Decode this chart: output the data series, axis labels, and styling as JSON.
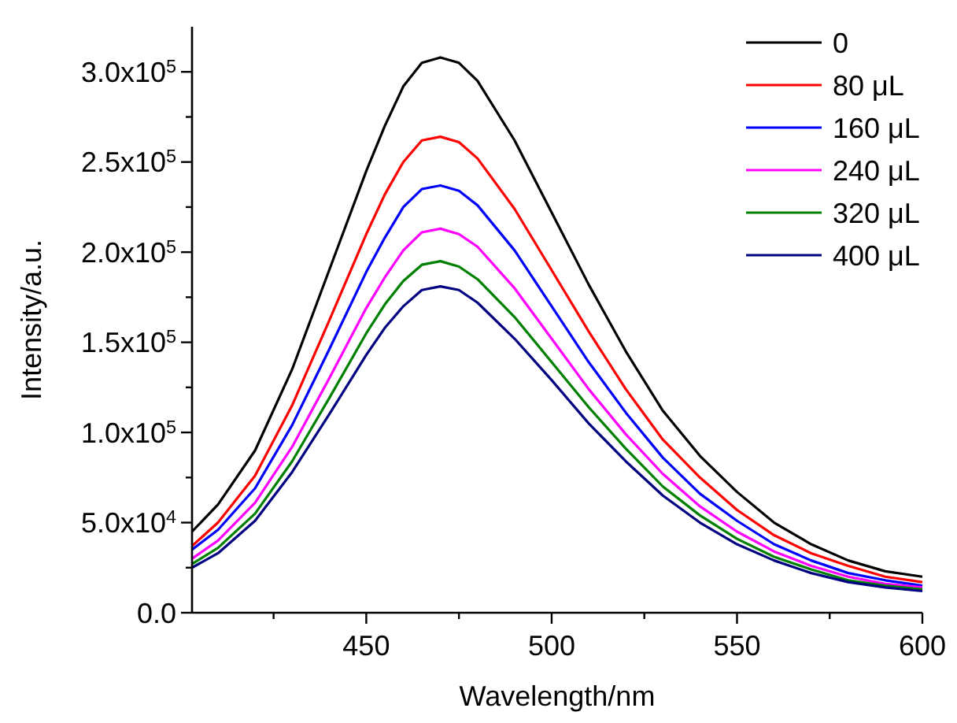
{
  "chart_data": {
    "type": "line",
    "xlabel": "Wavelength/nm",
    "ylabel": "Intensity/a.u.",
    "xlim": [
      403,
      600
    ],
    "ylim": [
      0,
      325000
    ],
    "xticks": [
      {
        "value": 425,
        "label": null
      },
      450,
      {
        "value": 475,
        "label": null
      },
      500,
      {
        "value": 525,
        "label": null
      },
      550,
      {
        "value": 575,
        "label": null
      },
      600
    ],
    "yticks": [
      {
        "value": 0,
        "label": "0.0"
      },
      {
        "value": 25000,
        "label": null
      },
      {
        "value": 50000,
        "label": "5.0x10$^{4}$"
      },
      {
        "value": 75000,
        "label": null
      },
      {
        "value": 100000,
        "label": "1.0x10$^{5}$"
      },
      {
        "value": 125000,
        "label": null
      },
      {
        "value": 150000,
        "label": "1.5x10$^{5}$"
      },
      {
        "value": 175000,
        "label": null
      },
      {
        "value": 200000,
        "label": "2.0x10$^{5}$"
      },
      {
        "value": 225000,
        "label": null
      },
      {
        "value": 250000,
        "label": "2.5x10$^{5}$"
      },
      {
        "value": 275000,
        "label": null
      },
      {
        "value": 300000,
        "label": "3.0x10$^{5}$"
      }
    ],
    "x": [
      403,
      410,
      420,
      430,
      440,
      450,
      455,
      460,
      465,
      470,
      475,
      480,
      490,
      500,
      510,
      520,
      530,
      540,
      550,
      560,
      570,
      580,
      590,
      600
    ],
    "grid": false,
    "legend": "top right",
    "marker": "none",
    "line_style": "solid",
    "series": [
      {
        "name": "0",
        "color": "#000000",
        "values": [
          45000,
          60000,
          90000,
          135000,
          190000,
          245000,
          270000,
          292000,
          305000,
          308000,
          305000,
          295000,
          262000,
          222000,
          182000,
          145000,
          112000,
          87000,
          67000,
          50000,
          38000,
          29000,
          23000,
          20000
        ]
      },
      {
        "name": "80 μL",
        "color": "#ff0000",
        "values": [
          37000,
          50000,
          76000,
          115000,
          162000,
          210000,
          232000,
          250000,
          262000,
          264000,
          261000,
          252000,
          224000,
          190000,
          156000,
          124000,
          96000,
          75000,
          57000,
          43000,
          33000,
          26000,
          20000,
          17000
        ]
      },
      {
        "name": "160 μL",
        "color": "#0000ff",
        "values": [
          35000,
          46000,
          69000,
          104000,
          146000,
          189000,
          208000,
          225000,
          235000,
          237000,
          234000,
          226000,
          201000,
          170000,
          139000,
          111000,
          86000,
          66000,
          51000,
          38000,
          29000,
          22000,
          18000,
          15000
        ]
      },
      {
        "name": "240 μL",
        "color": "#ff00ff",
        "values": [
          30000,
          40000,
          61000,
          92000,
          130000,
          169000,
          186000,
          201000,
          211000,
          213000,
          210000,
          203000,
          180000,
          152000,
          124000,
          99000,
          77000,
          59000,
          45000,
          34000,
          26000,
          20000,
          16000,
          14000
        ]
      },
      {
        "name": "320 μL",
        "color": "#008000",
        "values": [
          27000,
          36000,
          55000,
          84000,
          119000,
          155000,
          171000,
          184000,
          193000,
          195000,
          192000,
          185000,
          164000,
          139000,
          114000,
          91000,
          70000,
          54000,
          41000,
          31000,
          24000,
          18000,
          15000,
          13000
        ]
      },
      {
        "name": "400 μL",
        "color": "#000080",
        "values": [
          25000,
          33000,
          51000,
          78000,
          110000,
          143000,
          158000,
          170000,
          179000,
          181000,
          179000,
          172000,
          152000,
          129000,
          105000,
          84000,
          65000,
          50000,
          38000,
          29000,
          22000,
          17000,
          14000,
          12000
        ]
      }
    ]
  }
}
